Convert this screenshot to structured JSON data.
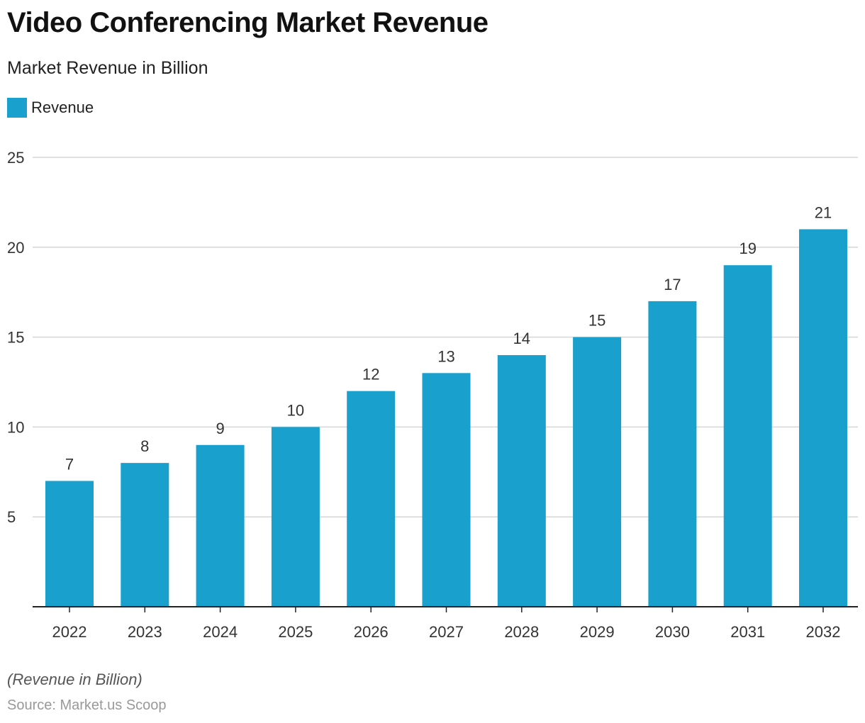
{
  "title": "Video Conferencing Market Revenue",
  "subtitle": "Market Revenue in Billion",
  "note": "(Revenue in Billion)",
  "source": "Source: Market.us Scoop",
  "colors": {
    "bar": "#1aa0cc",
    "grid": "#d6d6d6",
    "axis": "#222222"
  },
  "chart_data": {
    "type": "bar",
    "categories": [
      "2022",
      "2023",
      "2024",
      "2025",
      "2026",
      "2027",
      "2028",
      "2029",
      "2030",
      "2031",
      "2032"
    ],
    "series": [
      {
        "name": "Revenue",
        "values": [
          7,
          8,
          9,
          10,
          12,
          13,
          14,
          15,
          17,
          19,
          21
        ]
      }
    ],
    "yticks": [
      5,
      10,
      15,
      20,
      25
    ],
    "ylim": [
      0,
      25
    ],
    "grid": true,
    "legend_position": "top-left",
    "data_labels": true
  }
}
